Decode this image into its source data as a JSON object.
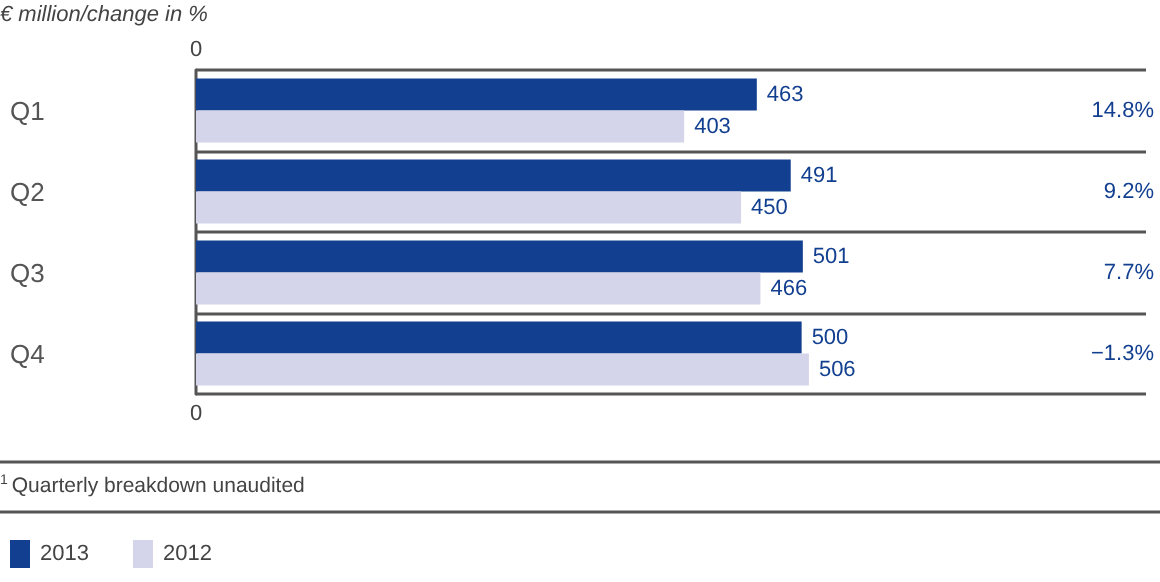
{
  "chart_data": {
    "type": "bar",
    "orientation": "horizontal",
    "ylabel": "€ million/change in %",
    "categories": [
      "Q1",
      "Q2",
      "Q3",
      "Q4"
    ],
    "series": [
      {
        "name": "2013",
        "color": "#123f8f",
        "values": [
          463,
          491,
          501,
          500
        ]
      },
      {
        "name": "2012",
        "color": "#d4d4ea",
        "values": [
          403,
          450,
          466,
          506
        ]
      }
    ],
    "data_labels": true,
    "grid": "y",
    "legend": "bottom left",
    "annotations": [
      "14.8%",
      "9.2%",
      "7.7%",
      "−1.3%",
      "0",
      "0",
      "$^{1}$Quarterly breakdown unaudited"
    ]
  }
}
